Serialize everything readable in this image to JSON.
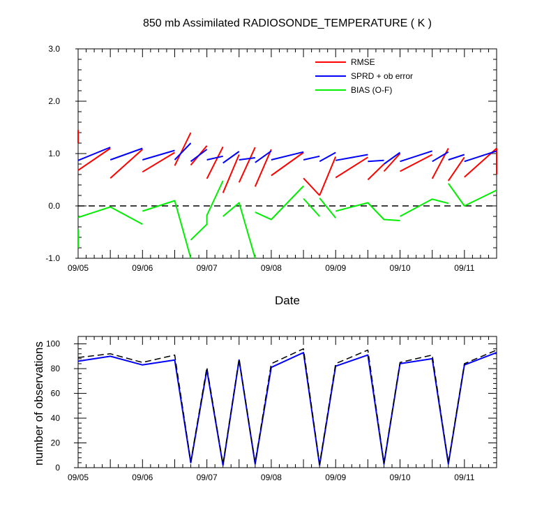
{
  "chart_data": [
    {
      "type": "line",
      "title": "850 mb Assimilated RADIOSONDE_TEMPERATURE ( K )",
      "xlabel": "Date",
      "ylabel": "",
      "x_range": [
        "09/05 00Z",
        "09/11 12Z"
      ],
      "x_tick_labels": [
        "09/05",
        "09/06",
        "09/07",
        "09/08",
        "09/09",
        "09/10",
        "09/11"
      ],
      "ylim": [
        -1.0,
        3.0
      ],
      "y_tick_values": [
        -1.0,
        0.0,
        1.0,
        2.0,
        3.0
      ],
      "y_tick_labels": [
        "-1.0",
        "0.0",
        "1.0",
        "2.0",
        "3.0"
      ],
      "reference_line": {
        "y": 0.0,
        "style": "dashed"
      },
      "grid": false,
      "legend_position": "top-right",
      "series": [
        {
          "name": "RMSE",
          "color": "#ff0000",
          "segments": [
            {
              "x": [
                "09/05 00Z",
                "09/05 00Z"
              ],
              "y": [
                1.45,
                1.2
              ]
            },
            {
              "x": [
                "09/05 00Z",
                "09/05 12Z"
              ],
              "y": [
                0.68,
                1.1
              ]
            },
            {
              "x": [
                "09/05 12Z",
                "09/06 00Z"
              ],
              "y": [
                0.53,
                1.08
              ]
            },
            {
              "x": [
                "09/06 00Z",
                "09/06 12Z"
              ],
              "y": [
                0.65,
                1.02
              ]
            },
            {
              "x": [
                "09/06 12Z",
                "09/06 18Z"
              ],
              "y": [
                0.77,
                1.4
              ]
            },
            {
              "x": [
                "09/06 18Z",
                "09/07 00Z"
              ],
              "y": [
                0.78,
                1.15
              ]
            },
            {
              "x": [
                "09/07 00Z",
                "09/07 06Z"
              ],
              "y": [
                0.52,
                1.13
              ]
            },
            {
              "x": [
                "09/07 06Z",
                "09/07 12Z"
              ],
              "y": [
                0.25,
                0.98
              ]
            },
            {
              "x": [
                "09/07 12Z",
                "09/07 18Z"
              ],
              "y": [
                0.45,
                1.12
              ]
            },
            {
              "x": [
                "09/07 18Z",
                "09/08 00Z"
              ],
              "y": [
                0.37,
                1.08
              ]
            },
            {
              "x": [
                "09/08 00Z",
                "09/08 12Z"
              ],
              "y": [
                0.58,
                1.02
              ]
            },
            {
              "x": [
                "09/08 12Z",
                "09/08 18Z"
              ],
              "y": [
                0.53,
                0.2
              ]
            },
            {
              "x": [
                "09/08 18Z",
                "09/09 00Z"
              ],
              "y": [
                0.2,
                0.94
              ]
            },
            {
              "x": [
                "09/09 00Z",
                "09/09 12Z"
              ],
              "y": [
                0.54,
                0.93
              ]
            },
            {
              "x": [
                "09/09 12Z",
                "09/09 18Z"
              ],
              "y": [
                0.5,
                0.8
              ]
            },
            {
              "x": [
                "09/09 18Z",
                "09/10 00Z"
              ],
              "y": [
                0.66,
                1.0
              ]
            },
            {
              "x": [
                "09/10 00Z",
                "09/10 12Z"
              ],
              "y": [
                0.66,
                0.98
              ]
            },
            {
              "x": [
                "09/10 12Z",
                "09/10 18Z"
              ],
              "y": [
                0.52,
                1.1
              ]
            },
            {
              "x": [
                "09/10 18Z",
                "09/11 00Z"
              ],
              "y": [
                0.48,
                0.93
              ]
            },
            {
              "x": [
                "09/11 00Z",
                "09/11 12Z"
              ],
              "y": [
                0.55,
                1.1
              ]
            },
            {
              "x": [
                "09/11 12Z",
                "09/11 12Z"
              ],
              "y": [
                1.1,
                0.6
              ]
            }
          ]
        },
        {
          "name": "SPRD + ob error",
          "color": "#0000ff",
          "segments": [
            {
              "x": [
                "09/05 00Z",
                "09/05 12Z"
              ],
              "y": [
                0.87,
                1.12
              ]
            },
            {
              "x": [
                "09/05 12Z",
                "09/06 00Z"
              ],
              "y": [
                0.88,
                1.1
              ]
            },
            {
              "x": [
                "09/06 00Z",
                "09/06 12Z"
              ],
              "y": [
                0.88,
                1.06
              ]
            },
            {
              "x": [
                "09/06 12Z",
                "09/06 18Z"
              ],
              "y": [
                0.88,
                1.2
              ]
            },
            {
              "x": [
                "09/06 18Z",
                "09/07 00Z"
              ],
              "y": [
                0.85,
                1.08
              ]
            },
            {
              "x": [
                "09/07 00Z",
                "09/07 06Z"
              ],
              "y": [
                0.88,
                0.95
              ]
            },
            {
              "x": [
                "09/07 06Z",
                "09/07 12Z"
              ],
              "y": [
                0.82,
                1.04
              ]
            },
            {
              "x": [
                "09/07 12Z",
                "09/07 18Z"
              ],
              "y": [
                0.88,
                0.92
              ]
            },
            {
              "x": [
                "09/07 18Z",
                "09/08 00Z"
              ],
              "y": [
                0.83,
                1.05
              ]
            },
            {
              "x": [
                "09/08 00Z",
                "09/08 12Z"
              ],
              "y": [
                0.88,
                1.03
              ]
            },
            {
              "x": [
                "09/08 12Z",
                "09/08 18Z"
              ],
              "y": [
                0.88,
                0.95
              ]
            },
            {
              "x": [
                "09/08 18Z",
                "09/09 00Z"
              ],
              "y": [
                0.85,
                1.02
              ]
            },
            {
              "x": [
                "09/09 00Z",
                "09/09 12Z"
              ],
              "y": [
                0.87,
                0.98
              ]
            },
            {
              "x": [
                "09/09 12Z",
                "09/09 18Z"
              ],
              "y": [
                0.85,
                0.87
              ]
            },
            {
              "x": [
                "09/09 18Z",
                "09/10 00Z"
              ],
              "y": [
                0.8,
                1.02
              ]
            },
            {
              "x": [
                "09/10 00Z",
                "09/10 12Z"
              ],
              "y": [
                0.85,
                1.05
              ]
            },
            {
              "x": [
                "09/10 12Z",
                "09/10 18Z"
              ],
              "y": [
                0.85,
                1.03
              ]
            },
            {
              "x": [
                "09/10 18Z",
                "09/11 00Z"
              ],
              "y": [
                0.88,
                0.98
              ]
            },
            {
              "x": [
                "09/11 00Z",
                "09/11 12Z"
              ],
              "y": [
                0.85,
                1.05
              ]
            }
          ]
        },
        {
          "name": "BIAS (O-F)",
          "color": "#00ee00",
          "segments": [
            {
              "x": [
                "09/05 00Z",
                "09/05 00Z"
              ],
              "y": [
                -0.45,
                -0.8
              ]
            },
            {
              "x": [
                "09/05 00Z",
                "09/05 12Z",
                "09/06 00Z"
              ],
              "y": [
                -0.22,
                -0.02,
                -0.35
              ]
            },
            {
              "x": [
                "09/06 00Z",
                "09/06 12Z",
                "09/06 18Z"
              ],
              "y": [
                -0.1,
                0.1,
                -1.0
              ]
            },
            {
              "x": [
                "09/06 18Z",
                "09/07 00Z",
                "09/07 00Z",
                "09/07 06Z"
              ],
              "y": [
                -0.65,
                -0.35,
                -0.18,
                0.48
              ]
            },
            {
              "x": [
                "09/07 06Z",
                "09/07 12Z",
                "09/07 18Z"
              ],
              "y": [
                -0.2,
                0.06,
                -1.0
              ]
            },
            {
              "x": [
                "09/07 18Z",
                "09/08 00Z",
                "09/08 12Z"
              ],
              "y": [
                -0.12,
                -0.26,
                0.38
              ]
            },
            {
              "x": [
                "09/08 12Z",
                "09/08 18Z"
              ],
              "y": [
                0.14,
                -0.2
              ]
            },
            {
              "x": [
                "09/08 18Z",
                "09/09 00Z"
              ],
              "y": [
                0.15,
                -0.23
              ]
            },
            {
              "x": [
                "09/09 00Z",
                "09/09 12Z",
                "09/09 18Z",
                "09/10 00Z"
              ],
              "y": [
                -0.1,
                0.06,
                -0.26,
                -0.28
              ]
            },
            {
              "x": [
                "09/10 00Z",
                "09/10 12Z",
                "09/10 18Z"
              ],
              "y": [
                -0.2,
                0.13,
                0.05
              ]
            },
            {
              "x": [
                "09/10 18Z",
                "09/11 00Z",
                "09/11 12Z"
              ],
              "y": [
                0.43,
                0.0,
                0.3
              ]
            }
          ]
        }
      ]
    },
    {
      "type": "line",
      "title": "",
      "xlabel": "",
      "ylabel": "number of observations",
      "x_range": [
        "09/05 00Z",
        "09/11 12Z"
      ],
      "x_tick_labels": [
        "09/05",
        "09/06",
        "09/07",
        "09/08",
        "09/09",
        "09/10",
        "09/11"
      ],
      "ylim": [
        0,
        106
      ],
      "y_tick_values": [
        0,
        20,
        40,
        60,
        80,
        100
      ],
      "y_tick_labels": [
        "0",
        "20",
        "40",
        "60",
        "80",
        "100"
      ],
      "grid": false,
      "series": [
        {
          "color": "#0000ff",
          "style": "solid",
          "x": [
            "09/05 00Z",
            "09/05 12Z",
            "09/06 00Z",
            "09/06 12Z",
            "09/06 18Z",
            "09/07 00Z",
            "09/07 06Z",
            "09/07 12Z",
            "09/07 18Z",
            "09/08 00Z",
            "09/08 12Z",
            "09/08 18Z",
            "09/09 00Z",
            "09/09 12Z",
            "09/09 18Z",
            "09/10 00Z",
            "09/10 12Z",
            "09/10 18Z",
            "09/11 00Z",
            "09/11 12Z"
          ],
          "y": [
            86,
            90,
            83,
            87,
            4,
            79,
            2,
            87,
            3,
            81,
            93,
            2,
            82,
            91,
            3,
            84,
            88,
            3,
            83,
            93
          ]
        },
        {
          "color": "#000000",
          "style": "dashed",
          "x": [
            "09/05 00Z",
            "09/05 12Z",
            "09/06 00Z",
            "09/06 12Z",
            "09/06 18Z",
            "09/07 00Z",
            "09/07 06Z",
            "09/07 12Z",
            "09/07 18Z",
            "09/08 00Z",
            "09/08 12Z",
            "09/08 18Z",
            "09/09 00Z",
            "09/09 12Z",
            "09/09 18Z",
            "09/10 00Z",
            "09/10 12Z",
            "09/10 18Z",
            "09/11 00Z",
            "09/11 12Z"
          ],
          "y": [
            89,
            92,
            85,
            91,
            5,
            81,
            3,
            88,
            4,
            84,
            96,
            3,
            84,
            95,
            4,
            85,
            91,
            4,
            84,
            95
          ]
        }
      ]
    }
  ]
}
